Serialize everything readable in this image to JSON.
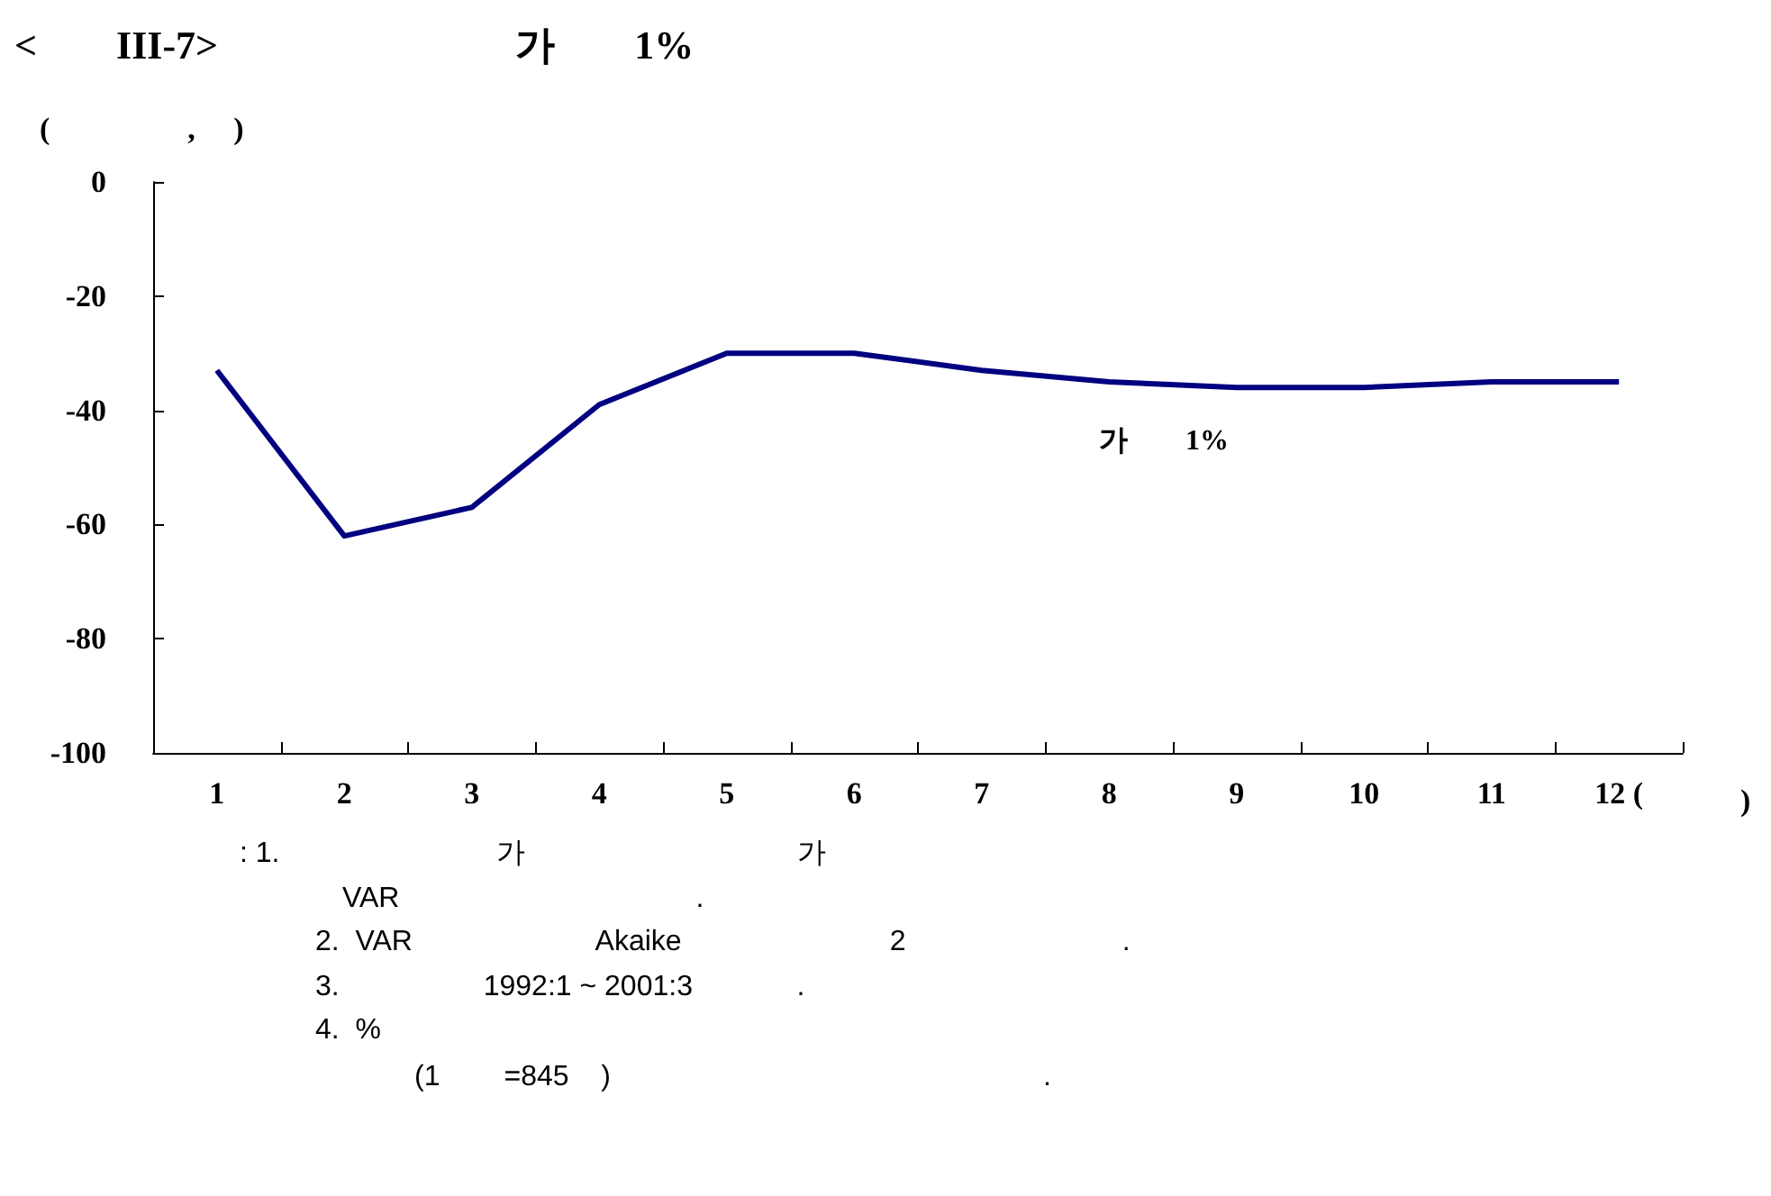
{
  "chart_data": {
    "type": "line",
    "title": "<        III-7>                              가        1%",
    "ylabel": "(                  ,     )",
    "xlabel": ")",
    "categories": [
      "1",
      "2",
      "3",
      "4",
      "5",
      "6",
      "7",
      "8",
      "9",
      "10",
      "11",
      "12 ("
    ],
    "series": [
      {
        "color": "#000080",
        "values": [
          -33,
          -62,
          -57,
          -39,
          -30,
          -30,
          -33,
          -35,
          -36,
          -36,
          -35,
          -35
        ]
      }
    ],
    "ylim": [
      -100,
      0
    ],
    "yticks": [
      -100,
      -80,
      -60,
      -40,
      -20,
      0
    ],
    "grid": false,
    "marker": "none",
    "line_style": "solid",
    "annotations": [
      "가        1%",
      ": 1.                           가                                  가",
      "VAR                                     .",
      "2.  VAR                       Akaike                          2                           .",
      "3.                  1992:1 ~ 2001:3             .",
      "4.  %",
      "(1        =845    )                                                      ."
    ]
  }
}
